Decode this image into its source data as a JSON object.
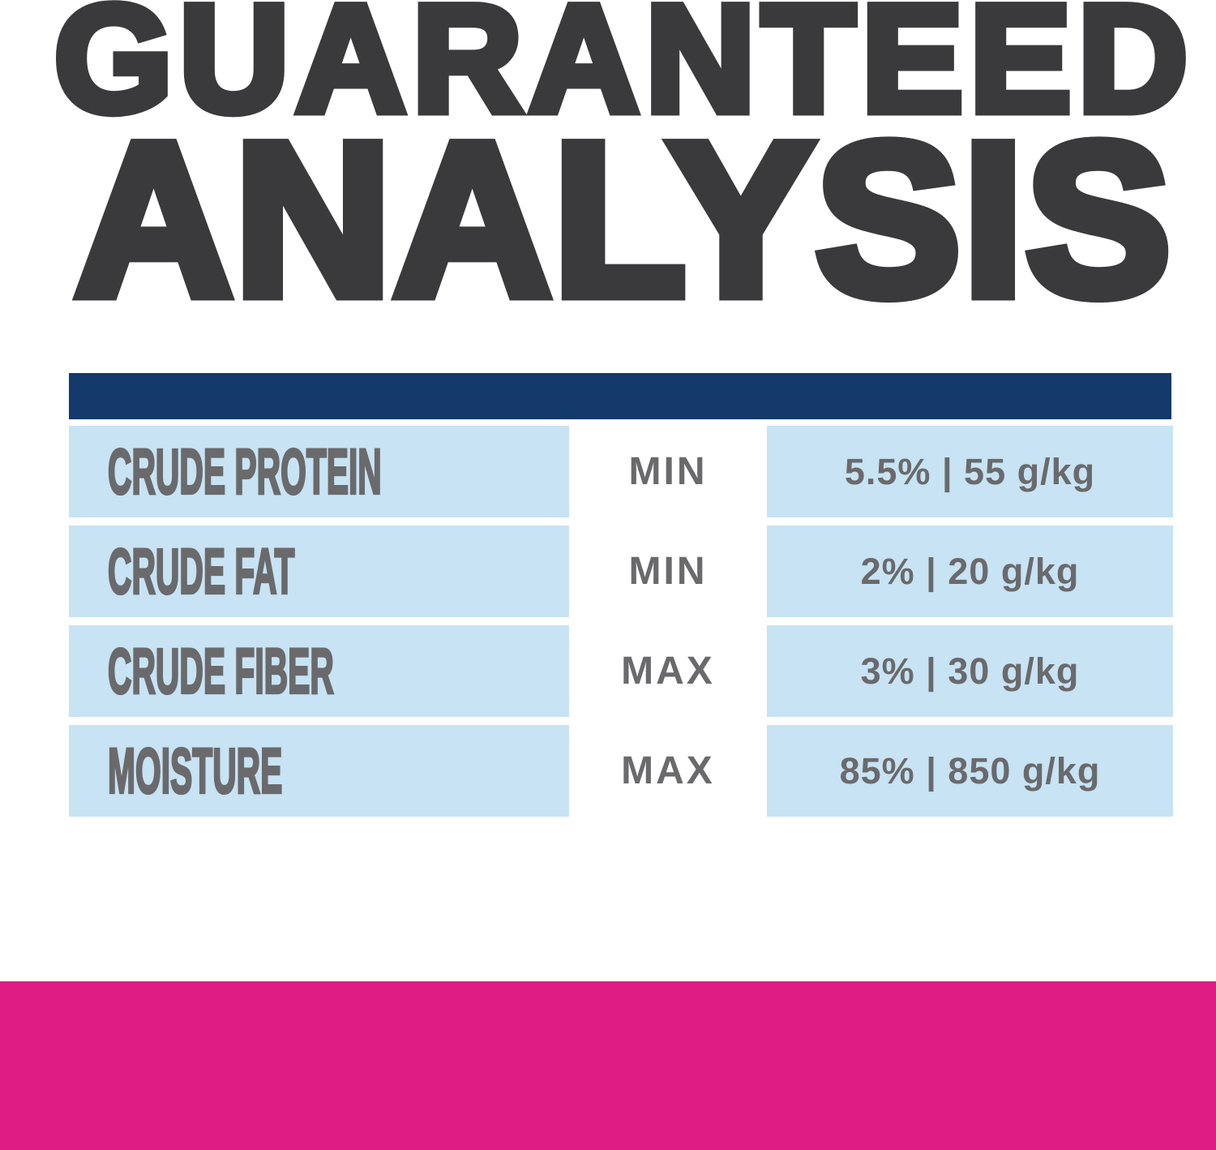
{
  "title": {
    "line1": "GUARANTEED",
    "line2": "ANALYSIS"
  },
  "analysis_table": {
    "rows": [
      {
        "nutrient": "CRUDE PROTEIN",
        "basis": "MIN",
        "value": "5.5% | 55 g/kg"
      },
      {
        "nutrient": "CRUDE FAT",
        "basis": "MIN",
        "value": "2% | 20 g/kg"
      },
      {
        "nutrient": "CRUDE FIBER",
        "basis": "MAX",
        "value": "3% | 30 g/kg"
      },
      {
        "nutrient": "MOISTURE",
        "basis": "MAX",
        "value": "85% | 850 g/kg"
      }
    ]
  },
  "colors": {
    "title_text": "#3A3A3C",
    "navy_bar": "#14396B",
    "row_blue": "#C7E3F4",
    "table_text": "#6A6A6C",
    "footer_magenta": "#DE1C83"
  }
}
